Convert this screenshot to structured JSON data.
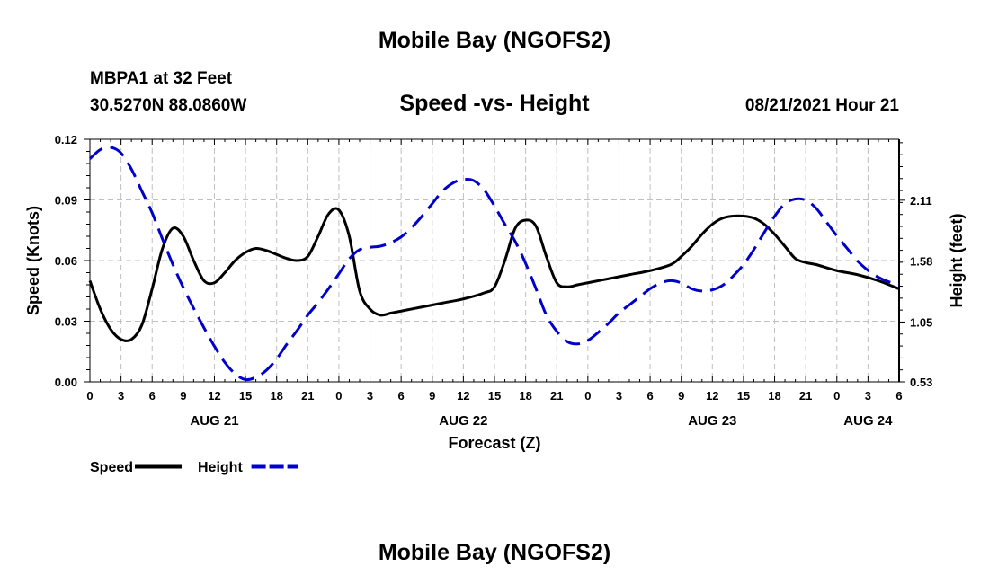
{
  "page": {
    "title_top": "Mobile Bay (NGOFS2)",
    "title_bottom": "Mobile Bay (NGOFS2)"
  },
  "station": {
    "name": "MBPA1 at 32 Feet",
    "coords": "30.5270N  88.0860W"
  },
  "chart_data": {
    "type": "line",
    "title": "Speed -vs- Height",
    "datetime_label": "08/21/2021 Hour 21",
    "xlabel": "Forecast (Z)",
    "ylabel_left": "Speed (Knots)",
    "ylabel_right": "Height (feet)",
    "x_unit": "hours",
    "xlim": [
      0,
      78
    ],
    "ylim_left": [
      0,
      0.12
    ],
    "ylim_right": [
      0.53,
      2.64
    ],
    "grid": true,
    "legend_position": "bottom-left",
    "x_tick_labels": [
      "0",
      "3",
      "6",
      "9",
      "12",
      "15",
      "18",
      "21",
      "0",
      "3",
      "6",
      "9",
      "12",
      "15",
      "18",
      "21",
      "0",
      "3",
      "6",
      "9",
      "12",
      "15",
      "18",
      "21",
      "0",
      "3",
      "6"
    ],
    "day_labels": [
      {
        "label": "AUG 21",
        "hour": 12
      },
      {
        "label": "AUG 22",
        "hour": 36
      },
      {
        "label": "AUG 23",
        "hour": 60
      },
      {
        "label": "AUG 24",
        "hour": 75
      }
    ],
    "y_left_tick_labels": [
      "0.00",
      "0.03",
      "0.06",
      "0.09",
      "0.12"
    ],
    "y_left_ticks": [
      0,
      0.03,
      0.06,
      0.09,
      0.12
    ],
    "y_right_tick_labels": [
      "0.53",
      "1.05",
      "1.58",
      "2.11"
    ],
    "y_right_ticks": [
      0.53,
      1.05,
      1.58,
      2.11
    ],
    "series": [
      {
        "name": "Speed",
        "axis": "left",
        "color": "#000000",
        "dash": "solid",
        "x": [
          0,
          1,
          2,
          3,
          4,
          5,
          6,
          7,
          8,
          9,
          10,
          11,
          12,
          13,
          14,
          15,
          16,
          17,
          18,
          19,
          20,
          21,
          22,
          23,
          24,
          25,
          26,
          27,
          28,
          29,
          30,
          32,
          34,
          36,
          38,
          39,
          40,
          41,
          42,
          43,
          44,
          45,
          46,
          47,
          48,
          50,
          52,
          54,
          56,
          57,
          58,
          59,
          60,
          61,
          62,
          63,
          64,
          65,
          66,
          67,
          68,
          69,
          70,
          72,
          74,
          76,
          78
        ],
        "values": [
          0.05,
          0.036,
          0.026,
          0.021,
          0.021,
          0.028,
          0.046,
          0.066,
          0.076,
          0.072,
          0.06,
          0.05,
          0.049,
          0.054,
          0.06,
          0.064,
          0.066,
          0.065,
          0.063,
          0.061,
          0.06,
          0.062,
          0.072,
          0.083,
          0.085,
          0.072,
          0.045,
          0.036,
          0.033,
          0.034,
          0.035,
          0.037,
          0.039,
          0.041,
          0.044,
          0.047,
          0.06,
          0.076,
          0.08,
          0.077,
          0.062,
          0.049,
          0.047,
          0.048,
          0.049,
          0.051,
          0.053,
          0.055,
          0.058,
          0.062,
          0.067,
          0.073,
          0.078,
          0.081,
          0.082,
          0.082,
          0.081,
          0.078,
          0.073,
          0.067,
          0.061,
          0.059,
          0.058,
          0.055,
          0.053,
          0.05,
          0.046
        ]
      },
      {
        "name": "Height",
        "axis": "right",
        "color": "#0000cc",
        "dash": "dashed",
        "x": [
          0,
          1,
          2,
          3,
          4,
          5,
          6,
          7,
          8,
          9,
          10,
          11,
          12,
          13,
          14,
          15,
          16,
          17,
          18,
          19,
          20,
          21,
          22,
          23,
          24,
          25,
          26,
          27,
          28,
          29,
          30,
          31,
          32,
          33,
          34,
          35,
          36,
          37,
          38,
          39,
          40,
          41,
          42,
          43,
          44,
          45,
          46,
          47,
          48,
          49,
          50,
          51,
          52,
          53,
          54,
          55,
          56,
          57,
          58,
          59,
          60,
          61,
          62,
          63,
          64,
          65,
          66,
          67,
          68,
          69,
          70,
          71,
          72,
          73,
          74,
          75,
          76,
          77,
          78
        ],
        "values": [
          2.47,
          2.55,
          2.57,
          2.52,
          2.38,
          2.19,
          2.0,
          1.77,
          1.55,
          1.35,
          1.17,
          1.0,
          0.84,
          0.7,
          0.6,
          0.55,
          0.57,
          0.63,
          0.73,
          0.86,
          0.98,
          1.11,
          1.22,
          1.34,
          1.47,
          1.6,
          1.68,
          1.7,
          1.71,
          1.74,
          1.79,
          1.87,
          1.97,
          2.08,
          2.19,
          2.26,
          2.29,
          2.28,
          2.2,
          2.06,
          1.9,
          1.75,
          1.56,
          1.34,
          1.11,
          0.97,
          0.88,
          0.86,
          0.89,
          0.96,
          1.04,
          1.13,
          1.2,
          1.27,
          1.34,
          1.39,
          1.41,
          1.39,
          1.34,
          1.32,
          1.33,
          1.37,
          1.45,
          1.55,
          1.68,
          1.83,
          1.97,
          2.08,
          2.12,
          2.11,
          2.04,
          1.92,
          1.8,
          1.69,
          1.58,
          1.5,
          1.44,
          1.4,
          1.38
        ]
      }
    ]
  }
}
